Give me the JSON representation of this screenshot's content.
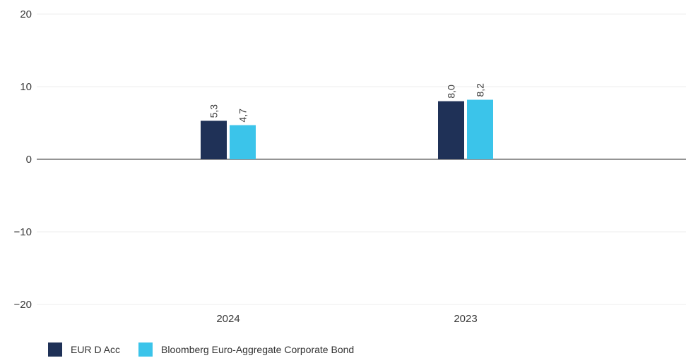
{
  "chart_data": {
    "type": "bar",
    "categories": [
      "2024",
      "2023"
    ],
    "series": [
      {
        "name": "EUR D Acc",
        "values": [
          5.3,
          8.0
        ],
        "labels": [
          "5,3",
          "8,0"
        ],
        "color": "#1f3157"
      },
      {
        "name": "Bloomberg Euro-Aggregate Corporate Bond",
        "values": [
          4.7,
          8.2
        ],
        "labels": [
          "4,7",
          "8,2"
        ],
        "color": "#3bc4ea"
      }
    ],
    "ylim": [
      -20,
      20
    ],
    "yticks": [
      20,
      10,
      0,
      -10,
      -20
    ],
    "ytick_labels": [
      "20",
      "10",
      "0",
      "−10",
      "−20"
    ],
    "grid": true,
    "legend_position": "bottom-left",
    "title": "",
    "xlabel": "",
    "ylabel": ""
  }
}
